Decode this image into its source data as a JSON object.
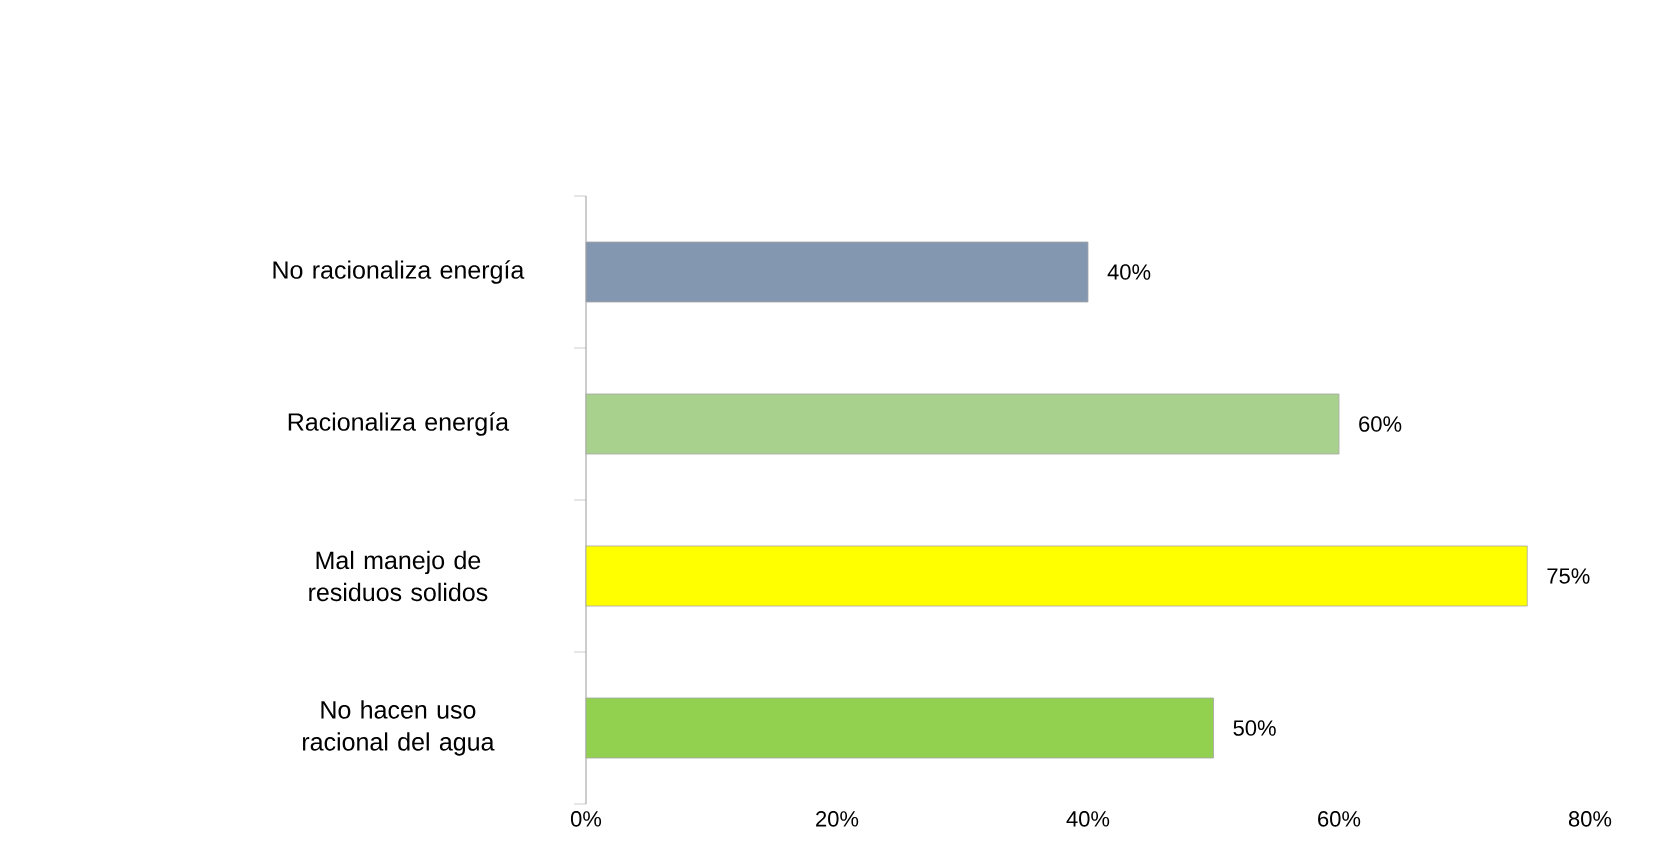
{
  "chart_data": {
    "type": "bar",
    "orientation": "horizontal",
    "categories": [
      "No racionaliza energía",
      "Racionaliza energía",
      "Mal manejo de residuos solidos",
      "No hacen uso racional del agua"
    ],
    "values": [
      40,
      60,
      75,
      50
    ],
    "colors": [
      "#8497b0",
      "#a9d18e",
      "#ffff00",
      "#92d050"
    ],
    "value_labels": [
      "40%",
      "60%",
      "75%",
      "50%"
    ],
    "xlim": [
      0,
      80
    ],
    "xticks": [
      {
        "value": 0,
        "label": "0%"
      },
      {
        "value": 20,
        "label": "20%"
      },
      {
        "value": 40,
        "label": "40%"
      },
      {
        "value": 60,
        "label": "60%"
      },
      {
        "value": 80,
        "label": "80%"
      }
    ],
    "grid": false
  }
}
